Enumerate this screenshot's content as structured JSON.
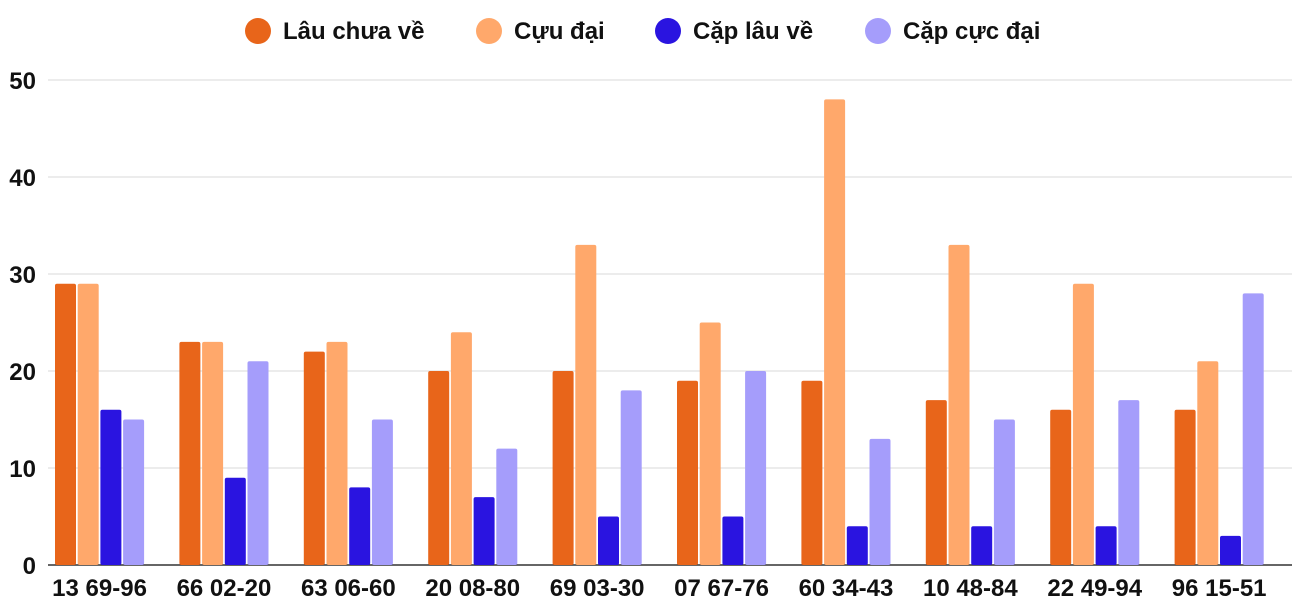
{
  "chart_data": {
    "type": "bar",
    "categories": [
      "13 69-96",
      "66 02-20",
      "63 06-60",
      "20 08-80",
      "69 03-30",
      "07 67-76",
      "60 34-43",
      "10 48-84",
      "22 49-94",
      "96 15-51"
    ],
    "series": [
      {
        "name": "Lâu chưa về",
        "color": "#e8651a",
        "values": [
          29,
          23,
          22,
          20,
          20,
          19,
          19,
          17,
          16,
          16
        ]
      },
      {
        "name": "Cựu đại",
        "color": "#ffa86b",
        "values": [
          29,
          23,
          23,
          24,
          33,
          25,
          48,
          33,
          29,
          21
        ]
      },
      {
        "name": "Cặp lâu về",
        "color": "#2a14e0",
        "values": [
          16,
          9,
          8,
          7,
          5,
          5,
          4,
          4,
          4,
          3
        ]
      },
      {
        "name": "Cặp cực đại",
        "color": "#a59dfb",
        "values": [
          15,
          21,
          15,
          12,
          18,
          20,
          13,
          15,
          17,
          28
        ]
      }
    ],
    "ylim": [
      0,
      50
    ],
    "yticks": [
      "0",
      "10",
      "20",
      "30",
      "40",
      "50"
    ],
    "grid": true,
    "legend_position": "top-center",
    "title": "",
    "xlabel": "",
    "ylabel": ""
  }
}
